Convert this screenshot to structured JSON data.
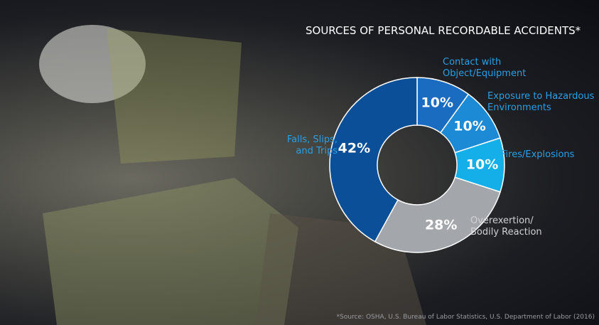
{
  "chart_data": {
    "type": "donut",
    "title": "SOURCES OF PERSONAL RECORDABLE ACCIDENTS*",
    "note": "*Source: OSHA, U.S. Bureau of Labor Statistics, U.S. Department of Labor (2016)",
    "categories": [
      "Contact with Object/Equipment",
      "Exposure to Hazardous Environments",
      "Fires/Explosions",
      "Overexertion/ Bodily Reaction",
      "Falls, Slips, and Trips"
    ],
    "values": [
      10,
      10,
      10,
      28,
      42
    ],
    "value_labels": [
      "10%",
      "10%",
      "10%",
      "28%",
      "42%"
    ],
    "colors": [
      "#1a6cc0",
      "#1d8ad6",
      "#14aee9",
      "#a3a6ab",
      "#0b4f98"
    ]
  }
}
